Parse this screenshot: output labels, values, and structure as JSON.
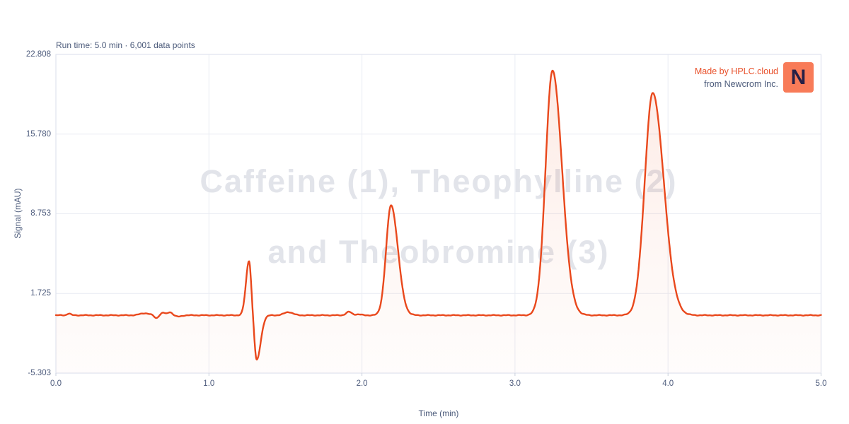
{
  "header": {
    "run_info": "Run time: 5.0 min · 6,001 data points"
  },
  "watermark": {
    "line1": "Caffeine (1), Theophylline (2)",
    "line2": "and Theobromine (3)"
  },
  "branding": {
    "made_by": "Made by HPLC.cloud",
    "from": "from Newcrom Inc.",
    "logo_letter": "N",
    "accent_color": "#e8502a",
    "logo_bg": "#f87b58",
    "logo_fg": "#262046"
  },
  "axes": {
    "x_label": "Time (min)",
    "y_label": "Signal (mAU)"
  },
  "chart_data": {
    "type": "line",
    "title": "Caffeine (1), Theophylline (2) and Theobromine (3)",
    "xlabel": "Time (min)",
    "ylabel": "Signal (mAU)",
    "xlim": [
      0.0,
      5.0
    ],
    "ylim": [
      -5.303,
      22.808
    ],
    "x_tick_values": [
      0.0,
      1.0,
      2.0,
      3.0,
      4.0,
      5.0
    ],
    "x_tick_labels": [
      "0.0",
      "1.0",
      "2.0",
      "3.0",
      "4.0",
      "5.0"
    ],
    "y_tick_values": [
      22.808,
      15.78,
      8.753,
      1.725,
      -5.303
    ],
    "y_tick_labels": [
      "22.808",
      "15.780",
      "8.753",
      "1.725",
      "-5.303"
    ],
    "grid": true,
    "legend": false,
    "run_time_min": 5.0,
    "num_data_points": 6001,
    "line_color": "#e9481c",
    "fill_color": "#ec5424",
    "baseline_mau": -0.2,
    "peaks": [
      {
        "id": "injection-artifact-positive",
        "t": 1.262,
        "height": 4.8,
        "sigma_l": 0.02,
        "sigma_r": 0.014
      },
      {
        "id": "injection-artifact-negative",
        "t": 1.312,
        "height": -3.95,
        "sigma_l": 0.014,
        "sigma_r": 0.026
      },
      {
        "id": "peak-1",
        "t": 2.19,
        "height": 9.7,
        "sigma_l": 0.032,
        "sigma_r": 0.045,
        "apex_mau": 9.5
      },
      {
        "id": "peak-2",
        "t": 3.245,
        "height": 21.6,
        "sigma_l": 0.045,
        "sigma_r": 0.062,
        "apex_mau": 21.4
      },
      {
        "id": "peak-3",
        "t": 3.9,
        "height": 19.6,
        "sigma_l": 0.052,
        "sigma_r": 0.072,
        "apex_mau": 19.4
      }
    ],
    "noise_bumps": [
      {
        "t": 0.085,
        "h": 0.15,
        "s": 0.012
      },
      {
        "t": 0.58,
        "h": 0.18,
        "s": 0.03
      },
      {
        "t": 0.655,
        "h": -0.25,
        "s": 0.012
      },
      {
        "t": 0.7,
        "h": 0.22,
        "s": 0.013
      },
      {
        "t": 0.745,
        "h": 0.28,
        "s": 0.016
      },
      {
        "t": 0.8,
        "h": -0.12,
        "s": 0.02
      },
      {
        "t": 1.52,
        "h": 0.28,
        "s": 0.028
      },
      {
        "t": 1.915,
        "h": 0.3,
        "s": 0.018
      },
      {
        "t": 1.975,
        "h": 0.08,
        "s": 0.02
      }
    ]
  }
}
